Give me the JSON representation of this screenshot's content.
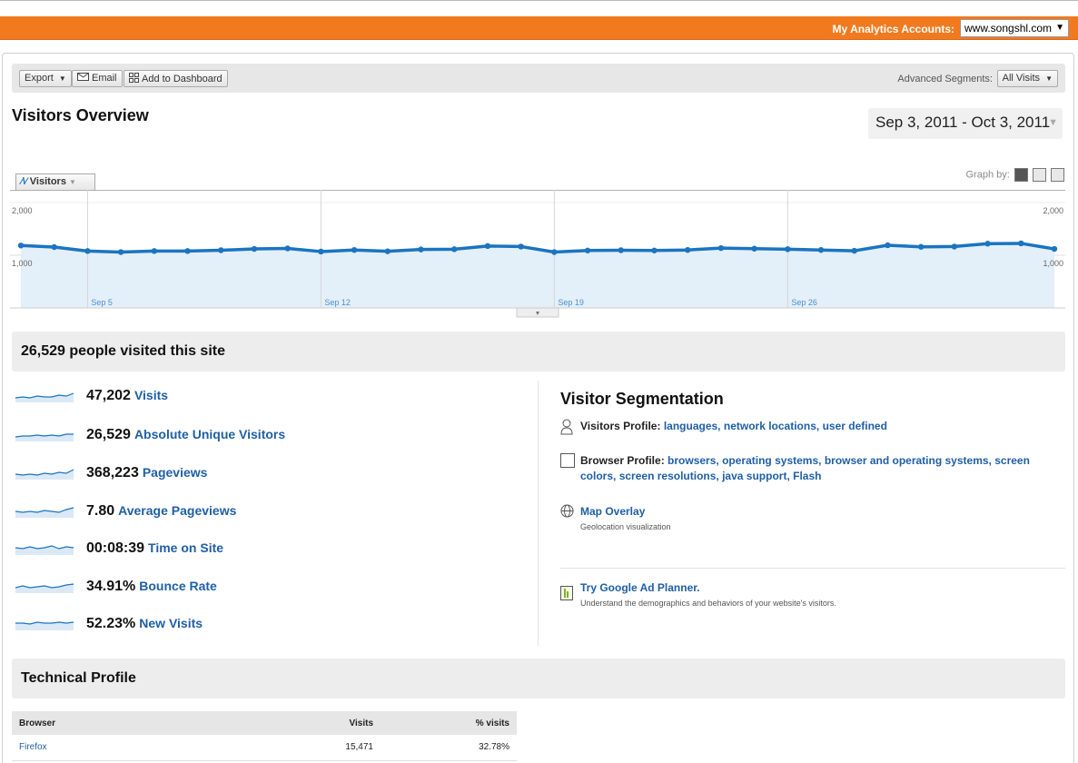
{
  "header": {
    "accounts_label": "My Analytics Accounts:",
    "account_selected": "www.songshl.com"
  },
  "toolbar": {
    "export_label": "Export",
    "email_label": "Email",
    "dashboard_label": "Add to Dashboard",
    "segments_label": "Advanced Segments:",
    "segments_value": "All Visits"
  },
  "page": {
    "title": "Visitors Overview",
    "date_range": "Sep 3, 2011 - Oct 3, 2011"
  },
  "graph": {
    "tab_label": "Visitors",
    "graph_by_label": "Graph by:"
  },
  "chart_data": {
    "type": "area",
    "series": [
      {
        "values": [
          1185,
          1155,
          1080,
          1060,
          1080,
          1080,
          1095,
          1120,
          1130,
          1070,
          1100,
          1075,
          1110,
          1115,
          1175,
          1165,
          1060,
          1090,
          1095,
          1090,
          1100,
          1135,
          1125,
          1115,
          1100,
          1085,
          1190,
          1160,
          1165,
          1220,
          1225,
          1120
        ]
      }
    ],
    "y_tick_labels": [
      "2,000",
      "1,000"
    ],
    "ylim": [
      0,
      2000
    ],
    "x_tick_labels": [
      "Sep 5",
      "Sep 12",
      "Sep 19",
      "Sep 26"
    ],
    "grid": true,
    "colors": {
      "line": "#1a74c0",
      "fill": "#e3eff9"
    }
  },
  "summary": {
    "visited_text": "26,529 people visited this site"
  },
  "metrics": [
    {
      "value": "47,202",
      "label": "Visits"
    },
    {
      "value": "26,529",
      "label": "Absolute Unique Visitors"
    },
    {
      "value": "368,223",
      "label": "Pageviews"
    },
    {
      "value": "7.80",
      "label": "Average Pageviews"
    },
    {
      "value": "00:08:39",
      "label": "Time on Site"
    },
    {
      "value": "34.91%",
      "label": "Bounce Rate"
    },
    {
      "value": "52.23%",
      "label": "New Visits"
    }
  ],
  "segmentation": {
    "title": "Visitor Segmentation",
    "visitors_profile_label": "Visitors Profile:",
    "visitors_links": [
      "languages,",
      "network locations,",
      "user defined"
    ],
    "browser_profile_label": "Browser Profile:",
    "browser_links": [
      "browsers,",
      "operating systems,",
      "browser and operating systems,",
      "screen colors,",
      "screen resolutions,",
      "java support,",
      "Flash"
    ],
    "map_title": "Map Overlay",
    "map_sub": "Geolocation visualization",
    "planner_title": "Try Google Ad Planner.",
    "planner_sub": "Understand the demographics and behaviors of your website's visitors."
  },
  "technical": {
    "title": "Technical Profile",
    "columns": [
      "Browser",
      "Visits",
      "% visits"
    ],
    "rows": [
      {
        "browser": "Firefox",
        "visits": "15,471",
        "pct": "32.78%"
      }
    ]
  }
}
